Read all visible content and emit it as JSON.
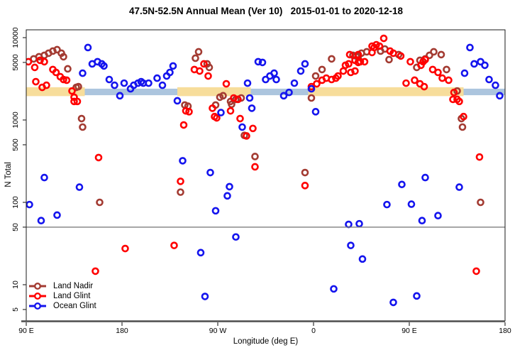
{
  "chart": {
    "title": "47.5N-52.5N Annual Mean (Ver 10)   2015-01-01 to 2020-12-18",
    "xlabel": "Longitude (deg E)",
    "ylabel": "N Total"
  },
  "chart_data": {
    "type": "scatter",
    "title": "47.5N-52.5N Annual Mean (Ver 10)   2015-01-01 to 2020-12-18",
    "xlabel": "Longitude (deg E)",
    "ylabel": "N Total",
    "x_axis": {
      "note": "x values are degrees of longitude east of 90E; axis wraps the globe 1.25 times",
      "range_deg": [
        0,
        450
      ],
      "ticks": [
        {
          "offset_deg": 0,
          "label": "90 E"
        },
        {
          "offset_deg": 90,
          "label": "180"
        },
        {
          "offset_deg": 180,
          "label": "90 W"
        },
        {
          "offset_deg": 270,
          "label": "0"
        },
        {
          "offset_deg": 360,
          "label": "90 E"
        },
        {
          "offset_deg": 450,
          "label": "180"
        }
      ]
    },
    "y_axis": {
      "scale": "log",
      "range": [
        3.6,
        12400
      ],
      "ticks": [
        10000,
        5000,
        1000,
        500,
        100,
        50,
        10,
        5
      ]
    },
    "reference_line": {
      "n": 50,
      "color": "#7f7f7f"
    },
    "bands": [
      {
        "name": "land-band",
        "color": "#F7DD9B",
        "n_low": 1950,
        "n_high": 2500,
        "segments_deg": [
          [
            0,
            55
          ],
          [
            142,
            211
          ],
          [
            265,
            411
          ]
        ]
      },
      {
        "name": "ocean-band",
        "color": "#ACC5DE",
        "n_low": 2000,
        "n_high": 2400,
        "segments_deg": [
          [
            55,
            142
          ],
          [
            211,
            265
          ],
          [
            411,
            450
          ]
        ]
      }
    ],
    "series": [
      {
        "name": "Land Nadir",
        "color": "#A33B32",
        "points": [
          [
            7,
            5520
          ],
          [
            12,
            5860
          ],
          [
            17,
            6100
          ],
          [
            21,
            6470
          ],
          [
            25,
            6860
          ],
          [
            29,
            7140
          ],
          [
            33,
            6470
          ],
          [
            35,
            5860
          ],
          [
            39,
            4180
          ],
          [
            47,
            2490
          ],
          [
            49,
            2540
          ],
          [
            52,
            1040
          ],
          [
            53,
            820
          ],
          [
            149,
            1520
          ],
          [
            152,
            1470
          ],
          [
            159,
            5630
          ],
          [
            162,
            6730
          ],
          [
            170,
            4800
          ],
          [
            172,
            4350
          ],
          [
            178,
            1520
          ],
          [
            182,
            1890
          ],
          [
            185,
            1970
          ],
          [
            192,
            1680
          ],
          [
            193,
            1550
          ],
          [
            197,
            1780
          ],
          [
            202,
            1850
          ],
          [
            205,
            650
          ],
          [
            268,
            1850
          ],
          [
            272,
            3420
          ],
          [
            278,
            4100
          ],
          [
            287,
            5520
          ],
          [
            307,
            6100
          ],
          [
            310,
            5980
          ],
          [
            312,
            5860
          ],
          [
            315,
            6470
          ],
          [
            320,
            6730
          ],
          [
            333,
            6860
          ],
          [
            337,
            7280
          ],
          [
            341,
            5410
          ],
          [
            350,
            6220
          ],
          [
            367,
            4350
          ],
          [
            370,
            5300
          ],
          [
            375,
            5520
          ],
          [
            379,
            6100
          ],
          [
            383,
            6730
          ],
          [
            390,
            6220
          ],
          [
            395,
            4100
          ],
          [
            405,
            2250
          ],
          [
            409,
            1040
          ],
          [
            410,
            820
          ],
          [
            69,
            100
          ],
          [
            145,
            133
          ],
          [
            215,
            360
          ],
          [
            262,
            230
          ],
          [
            427,
            100
          ]
        ]
      },
      {
        "name": "Land Glint",
        "color": "#FF0000",
        "points": [
          [
            2,
            5100
          ],
          [
            8,
            4350
          ],
          [
            13,
            5300
          ],
          [
            17,
            5100
          ],
          [
            9,
            2920
          ],
          [
            15,
            2490
          ],
          [
            19,
            2640
          ],
          [
            25,
            4100
          ],
          [
            28,
            3780
          ],
          [
            32,
            3350
          ],
          [
            35,
            3100
          ],
          [
            38,
            3040
          ],
          [
            43,
            2250
          ],
          [
            45,
            1890
          ],
          [
            45,
            1680
          ],
          [
            48,
            1680
          ],
          [
            148,
            870
          ],
          [
            150,
            1290
          ],
          [
            153,
            1260
          ],
          [
            158,
            4100
          ],
          [
            163,
            3930
          ],
          [
            167,
            4800
          ],
          [
            171,
            3420
          ],
          [
            175,
            1390
          ],
          [
            177,
            1100
          ],
          [
            179,
            1060
          ],
          [
            188,
            2750
          ],
          [
            192,
            1290
          ],
          [
            195,
            1850
          ],
          [
            199,
            1780
          ],
          [
            201,
            1040
          ],
          [
            207,
            640
          ],
          [
            213,
            790
          ],
          [
            268,
            2540
          ],
          [
            273,
            2750
          ],
          [
            278,
            3040
          ],
          [
            282,
            3220
          ],
          [
            287,
            3100
          ],
          [
            291,
            3220
          ],
          [
            293,
            3420
          ],
          [
            298,
            3930
          ],
          [
            300,
            4620
          ],
          [
            303,
            4800
          ],
          [
            305,
            3780
          ],
          [
            309,
            3930
          ],
          [
            312,
            5000
          ],
          [
            314,
            5100
          ],
          [
            318,
            5100
          ],
          [
            304,
            6220
          ],
          [
            309,
            5300
          ],
          [
            312,
            6220
          ],
          [
            325,
            7880
          ],
          [
            325,
            6600
          ],
          [
            327,
            7580
          ],
          [
            329,
            8200
          ],
          [
            332,
            7880
          ],
          [
            336,
            9800
          ],
          [
            342,
            6860
          ],
          [
            345,
            6470
          ],
          [
            352,
            5980
          ],
          [
            361,
            5100
          ],
          [
            365,
            3040
          ],
          [
            371,
            4620
          ],
          [
            373,
            5100
          ],
          [
            375,
            5410
          ],
          [
            357,
            2800
          ],
          [
            370,
            2750
          ],
          [
            374,
            2540
          ],
          [
            382,
            4100
          ],
          [
            387,
            3780
          ],
          [
            391,
            3220
          ],
          [
            397,
            3040
          ],
          [
            401,
            1780
          ],
          [
            402,
            2160
          ],
          [
            405,
            1780
          ],
          [
            407,
            1680
          ],
          [
            411,
            1100
          ],
          [
            68,
            350
          ],
          [
            145,
            180
          ],
          [
            215,
            270
          ],
          [
            65,
            14.6
          ],
          [
            93,
            27.5
          ],
          [
            139,
            30
          ],
          [
            262,
            160
          ],
          [
            426,
            355
          ],
          [
            423,
            14.6
          ]
        ]
      },
      {
        "name": "Ocean Glint",
        "color": "#1414EE",
        "points": [
          [
            58,
            7580
          ],
          [
            62,
            4800
          ],
          [
            67,
            5100
          ],
          [
            71,
            4800
          ],
          [
            73,
            4530
          ],
          [
            53,
            3700
          ],
          [
            78,
            3100
          ],
          [
            83,
            2640
          ],
          [
            88,
            1970
          ],
          [
            92,
            2800
          ],
          [
            98,
            2390
          ],
          [
            101,
            2640
          ],
          [
            105,
            2800
          ],
          [
            108,
            2920
          ],
          [
            110,
            2800
          ],
          [
            115,
            2800
          ],
          [
            123,
            3220
          ],
          [
            128,
            2640
          ],
          [
            132,
            3420
          ],
          [
            135,
            3780
          ],
          [
            138,
            4530
          ],
          [
            142,
            1710
          ],
          [
            183,
            1230
          ],
          [
            203,
            820
          ],
          [
            208,
            2800
          ],
          [
            210,
            1850
          ],
          [
            212,
            1390
          ],
          [
            218,
            5100
          ],
          [
            222,
            5000
          ],
          [
            225,
            3100
          ],
          [
            229,
            3420
          ],
          [
            233,
            3700
          ],
          [
            235,
            3100
          ],
          [
            242,
            1970
          ],
          [
            247,
            2160
          ],
          [
            252,
            2800
          ],
          [
            258,
            3930
          ],
          [
            262,
            4800
          ],
          [
            268,
            2390
          ],
          [
            272,
            1260
          ],
          [
            412,
            3700
          ],
          [
            417,
            7580
          ],
          [
            421,
            4800
          ],
          [
            427,
            5100
          ],
          [
            431,
            4620
          ],
          [
            435,
            3100
          ],
          [
            441,
            2640
          ],
          [
            445,
            1970
          ],
          [
            3,
            94
          ],
          [
            14,
            60
          ],
          [
            17,
            200
          ],
          [
            29,
            70
          ],
          [
            50,
            153
          ],
          [
            147,
            320
          ],
          [
            164,
            24.5
          ],
          [
            168,
            7.2
          ],
          [
            173,
            230
          ],
          [
            178,
            79
          ],
          [
            189,
            120
          ],
          [
            191,
            155
          ],
          [
            197,
            38
          ],
          [
            289,
            8.9
          ],
          [
            303,
            54
          ],
          [
            305,
            30
          ],
          [
            313,
            55
          ],
          [
            316,
            20.5
          ],
          [
            339,
            94
          ],
          [
            345,
            6.1
          ],
          [
            353,
            165
          ],
          [
            362,
            95
          ],
          [
            367,
            7.3
          ],
          [
            372,
            60
          ],
          [
            375,
            200
          ],
          [
            387,
            69
          ],
          [
            407,
            153
          ]
        ]
      }
    ],
    "legend_position": "bottom-left",
    "grid": false
  }
}
